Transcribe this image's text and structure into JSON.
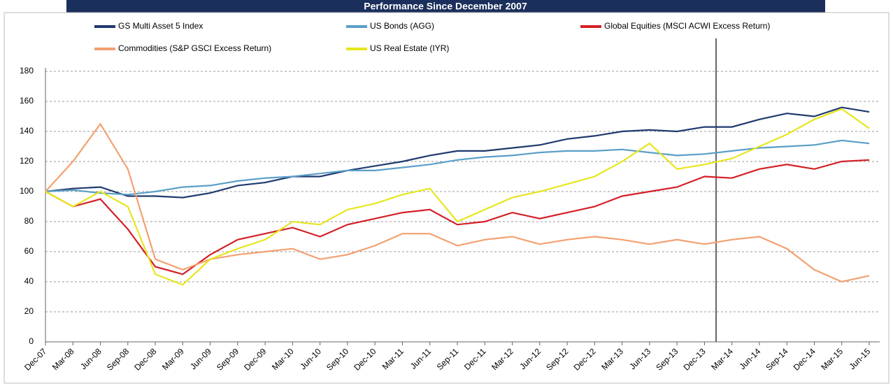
{
  "chart_data": {
    "type": "line",
    "title": "Performance Since December 2007",
    "categories": [
      "Dec-07",
      "Mar-08",
      "Jun-08",
      "Sep-08",
      "Dec-08",
      "Mar-09",
      "Jun-09",
      "Sep-09",
      "Dec-09",
      "Mar-10",
      "Jun-10",
      "Sep-10",
      "Dec-10",
      "Mar-11",
      "Jun-11",
      "Sep-11",
      "Dec-11",
      "Mar-12",
      "Jun-12",
      "Sep-12",
      "Dec-12",
      "Mar-13",
      "Jun-13",
      "Sep-13",
      "Dec-13",
      "Mar-14",
      "Jun-14",
      "Sep-14",
      "Dec-14",
      "Mar-15",
      "Jun-15"
    ],
    "series": [
      {
        "name": "GS Multi Asset 5 Index",
        "color": "#1f3a6e",
        "values": [
          100,
          102,
          103,
          97,
          97,
          96,
          99,
          104,
          106,
          110,
          110,
          114,
          117,
          120,
          124,
          127,
          127,
          129,
          131,
          135,
          137,
          140,
          141,
          140,
          143,
          143,
          148,
          152,
          150,
          156,
          153
        ]
      },
      {
        "name": "US Bonds (AGG)",
        "color": "#5a9fc8",
        "values": [
          100,
          101,
          99,
          98,
          100,
          103,
          104,
          107,
          109,
          110,
          112,
          114,
          114,
          116,
          118,
          121,
          123,
          124,
          126,
          127,
          127,
          128,
          126,
          124,
          125,
          127,
          129,
          130,
          131,
          134,
          132
        ]
      },
      {
        "name": "Global Equities (MSCI ACWI Excess Return)",
        "color": "#d42027",
        "values": [
          100,
          90,
          95,
          75,
          50,
          45,
          58,
          68,
          72,
          76,
          70,
          78,
          82,
          86,
          88,
          78,
          80,
          86,
          82,
          86,
          90,
          97,
          100,
          103,
          110,
          109,
          115,
          118,
          115,
          120,
          121
        ]
      },
      {
        "name": "Commodities (S&P GSCI Excess Return)",
        "color": "#f4a070",
        "values": [
          100,
          120,
          145,
          115,
          55,
          48,
          55,
          58,
          60,
          62,
          55,
          58,
          64,
          72,
          72,
          64,
          68,
          70,
          65,
          68,
          70,
          68,
          65,
          68,
          65,
          68,
          70,
          62,
          48,
          40,
          44
        ]
      },
      {
        "name": "US Real Estate  (IYR)",
        "color": "#e6e620",
        "values": [
          100,
          90,
          100,
          90,
          45,
          38,
          55,
          62,
          68,
          80,
          78,
          88,
          92,
          98,
          102,
          80,
          88,
          96,
          100,
          105,
          110,
          120,
          132,
          115,
          118,
          122,
          130,
          138,
          148,
          155,
          142
        ]
      }
    ],
    "ylim": [
      0,
      180
    ],
    "yticks": [
      0,
      20,
      40,
      60,
      80,
      100,
      120,
      140,
      160,
      180
    ],
    "grid": true
  }
}
